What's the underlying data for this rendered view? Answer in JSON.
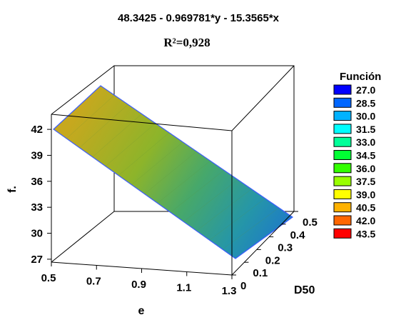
{
  "chart_data": {
    "type": "surface3d",
    "title": "48.3425 - 0.969781*y - 15.3565*x",
    "r2_label": "R²=0,928",
    "xlabel": "e",
    "ylabel": "D50",
    "zlabel": "f.",
    "x_ticks": [
      "0.5",
      "0.7",
      "0.9",
      "1.1",
      "1.3"
    ],
    "y_ticks": [
      "0",
      "0.1",
      "0.2",
      "0.3",
      "0.4",
      "0.5"
    ],
    "z_ticks": [
      "27",
      "30",
      "33",
      "36",
      "39",
      "42"
    ],
    "xlim": [
      0.5,
      1.3
    ],
    "ylim": [
      0,
      0.5
    ],
    "zlim": [
      26,
      43
    ],
    "formula": {
      "intercept": 48.3425,
      "coef_y": -0.969781,
      "coef_x": -15.3565
    },
    "legend": {
      "title": "Función",
      "items": [
        {
          "label": "27.0",
          "color": "#0000ff"
        },
        {
          "label": "28.5",
          "color": "#0066ff"
        },
        {
          "label": "30.0",
          "color": "#00b2ff"
        },
        {
          "label": "31.5",
          "color": "#00ffff"
        },
        {
          "label": "33.0",
          "color": "#00ff99"
        },
        {
          "label": "34.5",
          "color": "#00ff33"
        },
        {
          "label": "36.0",
          "color": "#33ff00"
        },
        {
          "label": "37.5",
          "color": "#99ff00"
        },
        {
          "label": "39.0",
          "color": "#ffff00"
        },
        {
          "label": "40.5",
          "color": "#ffb200"
        },
        {
          "label": "42.0",
          "color": "#ff6600"
        },
        {
          "label": "43.5",
          "color": "#ff0000"
        }
      ]
    }
  }
}
